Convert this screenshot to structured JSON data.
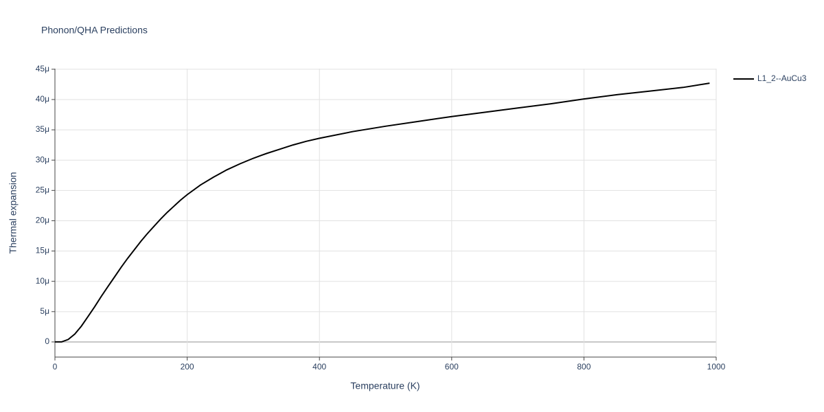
{
  "chart_data": {
    "type": "line",
    "title": "Phonon/QHA Predictions",
    "x_label": "Temperature (K)",
    "y_label": "Thermal expansion",
    "x": [
      0,
      10,
      20,
      30,
      40,
      50,
      60,
      70,
      80,
      90,
      100,
      110,
      120,
      130,
      140,
      150,
      160,
      170,
      180,
      190,
      200,
      220,
      240,
      260,
      280,
      300,
      320,
      340,
      360,
      380,
      400,
      450,
      500,
      550,
      600,
      650,
      700,
      750,
      800,
      850,
      900,
      950,
      990
    ],
    "series": [
      {
        "name": "L1_2--AuCu3",
        "color": "#000000",
        "values": [
          0,
          0,
          4e-07,
          1.3e-06,
          2.6e-06,
          4.2e-06,
          5.8e-06,
          7.5e-06,
          9.1e-06,
          1.07e-05,
          1.23e-05,
          1.38e-05,
          1.52e-05,
          1.66e-05,
          1.79e-05,
          1.91e-05,
          2.03e-05,
          2.14e-05,
          2.24e-05,
          2.34e-05,
          2.43e-05,
          2.59e-05,
          2.72e-05,
          2.84e-05,
          2.94e-05,
          3.03e-05,
          3.11e-05,
          3.18e-05,
          3.25e-05,
          3.31e-05,
          3.36e-05,
          3.47e-05,
          3.56e-05,
          3.64e-05,
          3.72e-05,
          3.79e-05,
          3.86e-05,
          3.93e-05,
          4.01e-05,
          4.08e-05,
          4.14e-05,
          4.2e-05,
          4.27e-05
        ]
      }
    ],
    "xlim": [
      0,
      1000
    ],
    "xticks": [
      0,
      200,
      400,
      600,
      800,
      1000
    ],
    "ylim": [
      -2.5e-06,
      4.6e-05
    ],
    "yticks": [
      0,
      {
        "value": 5e-06,
        "label": "5μ"
      },
      {
        "value": 1e-05,
        "label": "10μ"
      },
      {
        "value": 1.5e-05,
        "label": "15μ"
      },
      {
        "value": 2e-05,
        "label": "20μ"
      },
      {
        "value": 2.5e-05,
        "label": "25μ"
      },
      {
        "value": 3e-05,
        "label": "30μ"
      },
      {
        "value": 3.5e-05,
        "label": "35μ"
      },
      {
        "value": 4e-05,
        "label": "40μ"
      },
      {
        "value": 4.5e-05,
        "label": "45μ"
      }
    ],
    "grid": true,
    "legend": "right"
  }
}
